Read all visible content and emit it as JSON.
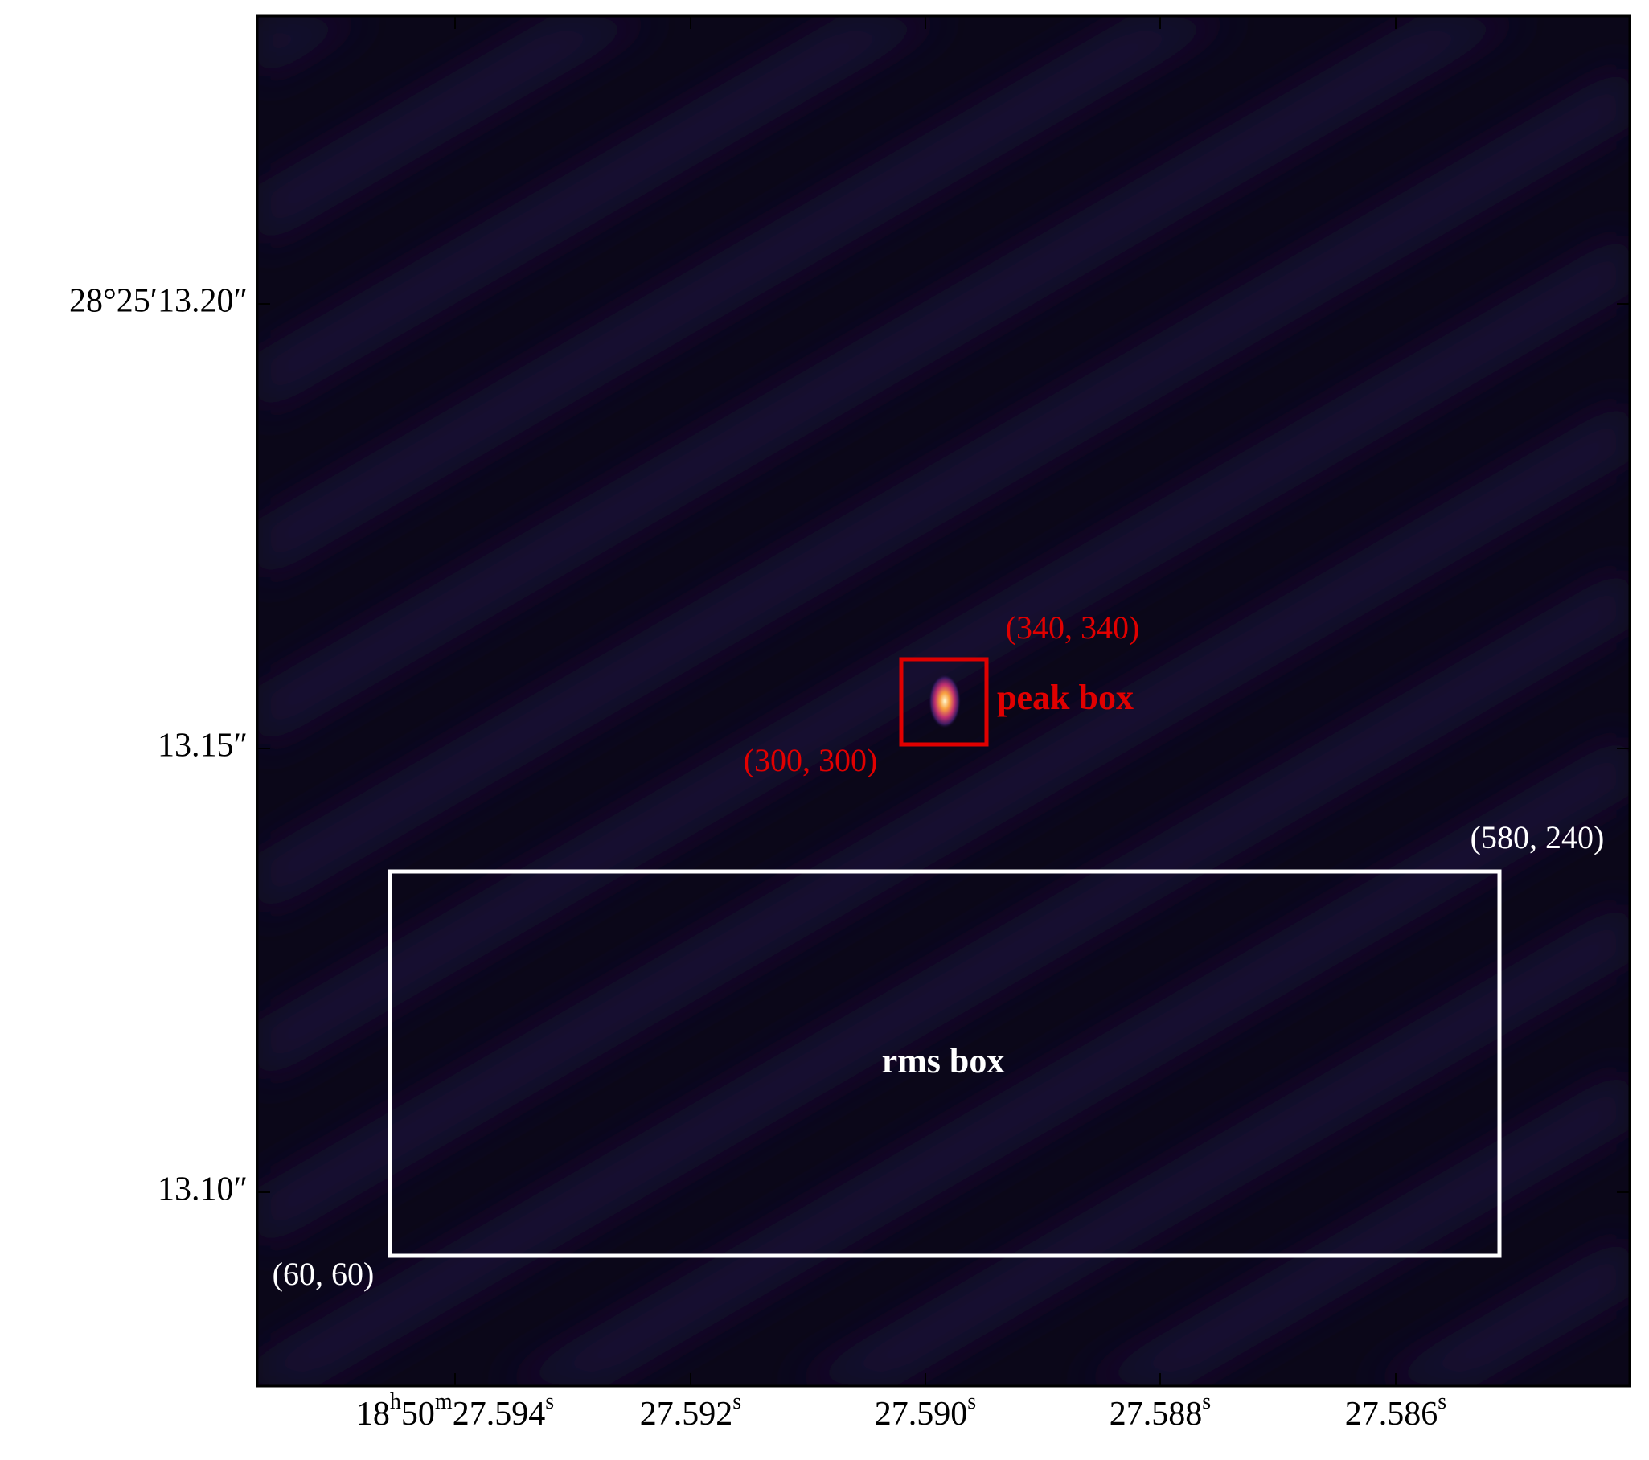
{
  "figure": {
    "x_tick_labels": [
      [
        "18",
        "h",
        "50",
        "m",
        "27.594",
        "s"
      ],
      [
        "27.592",
        "s"
      ],
      [
        "27.590",
        "s"
      ],
      [
        "27.588",
        "s"
      ],
      [
        "27.586",
        "s"
      ]
    ],
    "y_tick_labels": [
      "28°25′13.20″",
      "13.15″",
      "13.10″"
    ],
    "peak_box": {
      "label": "peak box",
      "corner_top": "(340, 340)",
      "corner_bottom": "(300, 300)"
    },
    "rms_box": {
      "label": "rms box",
      "corner_top": "(580, 240)",
      "corner_bottom": "(60, 60)"
    }
  }
}
